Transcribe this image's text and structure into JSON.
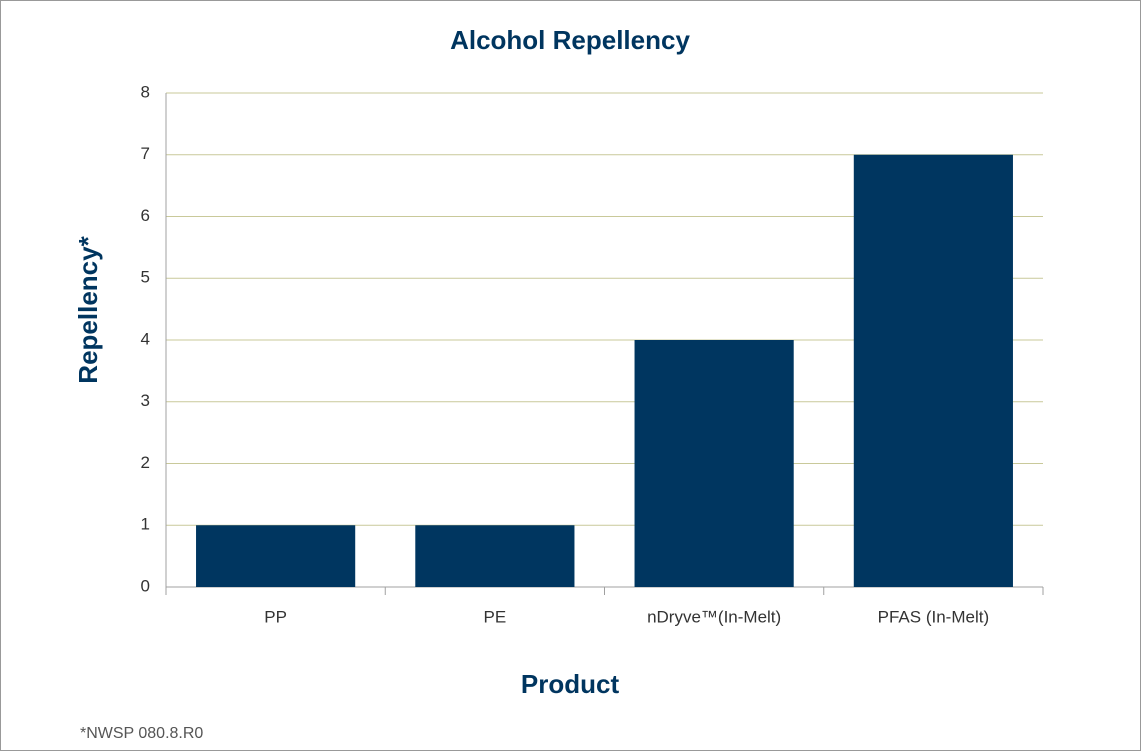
{
  "chart_data": {
    "type": "bar",
    "title": "Alcohol Repellency",
    "x_label": "Product",
    "y_label": "Repellency*",
    "categories": [
      "PP",
      "PE",
      "nDryve™(In-Melt)",
      "PFAS (In-Melt)"
    ],
    "values": [
      1,
      1,
      4,
      7
    ],
    "color": "#003660",
    "ylim": [
      0,
      8
    ],
    "yticks": [
      0,
      1,
      2,
      3,
      4,
      5,
      6,
      7,
      8
    ],
    "grid": true,
    "footnote": "*NWSP 080.8.R0"
  }
}
